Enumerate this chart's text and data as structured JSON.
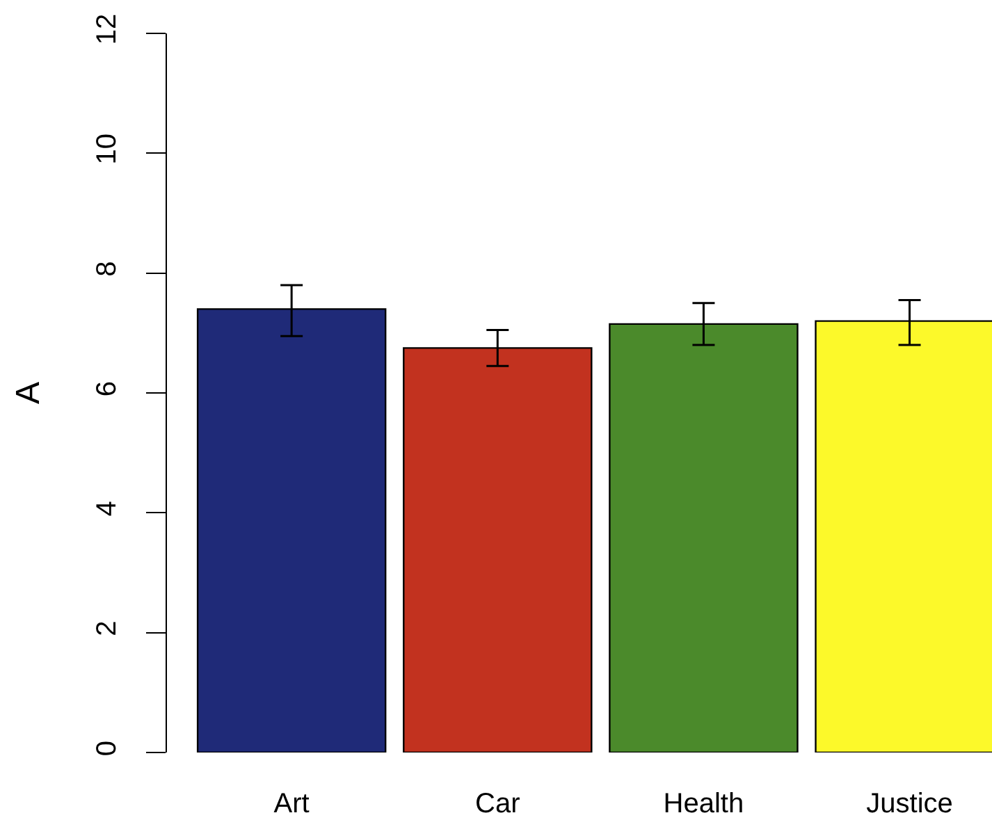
{
  "chart_data": {
    "type": "bar",
    "ylabel": "A",
    "categories": [
      "Art",
      "Car",
      "Health",
      "Justice"
    ],
    "values": [
      7.4,
      6.75,
      7.15,
      7.2
    ],
    "errors": [
      [
        6.95,
        7.8
      ],
      [
        6.45,
        7.05
      ],
      [
        6.8,
        7.5
      ],
      [
        6.8,
        7.55
      ]
    ],
    "colors": [
      "#1f2a78",
      "#c2321f",
      "#4b8a2b",
      "#fcf92a"
    ],
    "ylim": [
      0,
      12
    ],
    "yticks": [
      0,
      2,
      4,
      6,
      8,
      10,
      12
    ],
    "grid": false
  }
}
